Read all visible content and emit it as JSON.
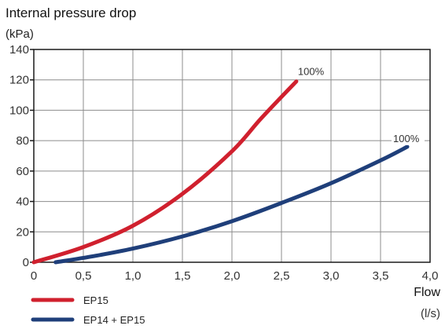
{
  "chart_data": {
    "type": "line",
    "title": "Internal pressure drop",
    "y_unit": "(kPa)",
    "xlabel": "Flow",
    "x_unit": "(l/s)",
    "xlim": [
      0,
      4.0
    ],
    "ylim": [
      0,
      140
    ],
    "x_ticks": [
      0,
      0.5,
      1.0,
      1.5,
      2.0,
      2.5,
      3.0,
      3.5,
      4.0
    ],
    "x_tick_labels": [
      "0",
      "0,5",
      "1,0",
      "1,5",
      "2,0",
      "2,5",
      "3,0",
      "3,5",
      "4,0"
    ],
    "y_ticks": [
      0,
      20,
      40,
      60,
      80,
      100,
      120,
      140
    ],
    "y_tick_labels": [
      "0",
      "20",
      "40",
      "60",
      "80",
      "100",
      "120",
      "140"
    ],
    "grid": true,
    "legend_position": "bottom-left",
    "series": [
      {
        "name": "EP15",
        "color": "#d0202e",
        "points": [
          [
            0.0,
            0
          ],
          [
            0.5,
            10
          ],
          [
            1.0,
            24
          ],
          [
            1.5,
            45
          ],
          [
            2.0,
            73
          ],
          [
            2.3,
            95
          ],
          [
            2.65,
            119
          ]
        ],
        "end_label": "100%"
      },
      {
        "name": "EP14 + EP15",
        "color": "#1f3f7a",
        "points": [
          [
            0.22,
            0
          ],
          [
            0.6,
            4
          ],
          [
            1.0,
            9
          ],
          [
            1.5,
            17
          ],
          [
            2.0,
            27
          ],
          [
            2.5,
            39
          ],
          [
            3.0,
            52
          ],
          [
            3.5,
            67
          ],
          [
            3.77,
            76
          ]
        ],
        "end_label": "100%"
      }
    ]
  }
}
